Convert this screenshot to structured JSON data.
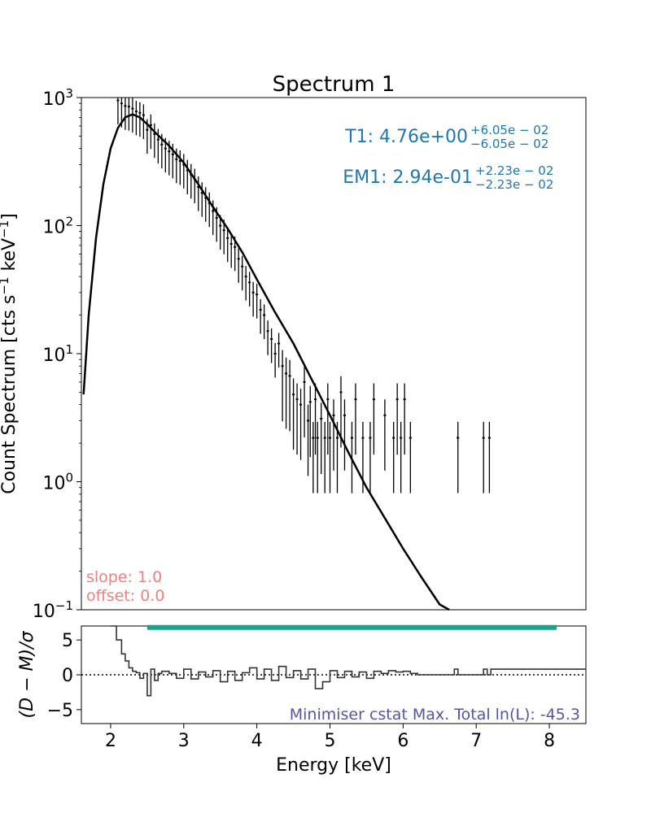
{
  "chart_data": [
    {
      "type": "scatter",
      "title": "Spectrum 1",
      "ylabel_main": "Count Spectrum [cts s",
      "ylabel_sup1": "−1",
      "ylabel_mid": " keV",
      "ylabel_sup2": "−1",
      "ylabel_end": "]",
      "yscale": "log",
      "xlim": [
        1.6,
        8.5
      ],
      "ylim": [
        0.1,
        1000
      ],
      "y_ticks": [
        {
          "base": "10",
          "exp": "−1",
          "v": 0.1
        },
        {
          "base": "10",
          "exp": "0",
          "v": 1
        },
        {
          "base": "10",
          "exp": "1",
          "v": 10
        },
        {
          "base": "10",
          "exp": "2",
          "v": 100
        },
        {
          "base": "10",
          "exp": "3",
          "v": 1000
        }
      ],
      "annotations": {
        "t1": {
          "label": "T1: 4.76e+00",
          "sup": "+6.05e − 02",
          "sub": "−6.05e − 02",
          "color": "#1f77b4"
        },
        "em1": {
          "label": "EM1: 2.94e-01",
          "sup": "+2.23e − 02",
          "sub": "−2.23e − 02",
          "color": "#1f77b4"
        },
        "slope": {
          "label": "slope: 1.0",
          "color": "#f08080"
        },
        "offset": {
          "label": "offset: 0.0",
          "color": "#f08080"
        }
      },
      "model_curve": {
        "color": "#000000",
        "x": [
          1.63,
          1.7,
          1.8,
          1.9,
          2.0,
          2.1,
          2.2,
          2.3,
          2.4,
          2.5,
          2.6,
          2.8,
          3.0,
          3.2,
          3.4,
          3.6,
          3.8,
          4.0,
          4.25,
          4.5,
          4.75,
          5.0,
          5.25,
          5.5,
          5.75,
          6.0,
          6.25,
          6.5,
          6.63
        ],
        "y": [
          4.8,
          20,
          80,
          210,
          400,
          580,
          700,
          740,
          700,
          620,
          540,
          420,
          310,
          210,
          140,
          95,
          62,
          38,
          21,
          12,
          6.3,
          3.3,
          1.7,
          0.9,
          0.52,
          0.3,
          0.18,
          0.11,
          0.1
        ]
      },
      "data_points": {
        "color": "#000000",
        "x": [
          2.1,
          2.15,
          2.2,
          2.25,
          2.3,
          2.35,
          2.4,
          2.45,
          2.5,
          2.55,
          2.6,
          2.65,
          2.7,
          2.75,
          2.8,
          2.85,
          2.9,
          2.95,
          3.0,
          3.05,
          3.1,
          3.15,
          3.2,
          3.25,
          3.3,
          3.35,
          3.4,
          3.45,
          3.5,
          3.55,
          3.6,
          3.65,
          3.7,
          3.75,
          3.8,
          3.85,
          3.9,
          3.95,
          4.0,
          4.05,
          4.1,
          4.15,
          4.2,
          4.25,
          4.3,
          4.35,
          4.4,
          4.45,
          4.5,
          4.55,
          4.6,
          4.65,
          4.7,
          4.73,
          4.77,
          4.8,
          4.83,
          4.88,
          4.93,
          4.97,
          5.0,
          5.05,
          5.1,
          5.15,
          5.2,
          5.3,
          5.35,
          5.45,
          5.55,
          5.6,
          5.75,
          5.87,
          5.92,
          5.97,
          6.02,
          6.1,
          6.75,
          7.1,
          7.18
        ],
        "y": [
          950,
          900,
          860,
          850,
          820,
          780,
          760,
          730,
          560,
          610,
          520,
          470,
          430,
          400,
          380,
          360,
          330,
          320,
          300,
          270,
          250,
          230,
          200,
          180,
          165,
          150,
          130,
          115,
          100,
          92,
          80,
          72,
          68,
          55,
          48,
          40,
          36,
          30,
          29,
          22,
          20,
          15,
          13,
          10,
          12,
          8,
          7,
          6.7,
          4.8,
          4.4,
          4.0,
          6.0,
          3.0,
          4.2,
          2.2,
          4.4,
          2.2,
          3.1,
          2.2,
          4.4,
          2.2,
          3.3,
          2.2,
          5.0,
          3.3,
          2.2,
          4.4,
          2.2,
          2.2,
          4.4,
          3.3,
          2.2,
          4.4,
          2.2,
          4.4,
          2.2,
          2.2,
          2.2,
          2.2
        ],
        "err_rel": 0.35
      }
    },
    {
      "type": "line",
      "ylabel": "(D − M)/σ",
      "xlabel": "Energy [keV]",
      "xlim": [
        1.6,
        8.5
      ],
      "ylim": [
        -7,
        7
      ],
      "x_ticks": [
        2,
        3,
        4,
        5,
        6,
        7,
        8
      ],
      "y_ticks": [
        -5,
        0,
        5
      ],
      "fit_range": {
        "x": [
          2.5,
          8.1
        ],
        "y": 6.8,
        "color": "#17a589"
      },
      "annotation": {
        "label": "Minimiser cstat Max. Total ln(L): -45.3",
        "color": "#5555aa"
      },
      "residual_step": {
        "color": "#333333",
        "x": [
          2.0,
          2.08,
          2.15,
          2.2,
          2.25,
          2.3,
          2.35,
          2.4,
          2.45,
          2.5,
          2.55,
          2.6,
          2.65,
          2.7,
          2.8,
          2.9,
          3.0,
          3.1,
          3.2,
          3.3,
          3.4,
          3.5,
          3.6,
          3.7,
          3.8,
          3.9,
          4.0,
          4.1,
          4.2,
          4.3,
          4.4,
          4.5,
          4.6,
          4.7,
          4.8,
          4.9,
          5.0,
          5.1,
          5.2,
          5.3,
          5.4,
          5.5,
          5.6,
          5.7,
          5.8,
          5.9,
          6.0,
          6.1,
          6.2,
          6.7,
          6.75,
          7.1,
          7.15,
          7.2,
          8.5
        ],
        "y": [
          7.5,
          5.0,
          3.0,
          2.0,
          1.0,
          0.5,
          0.3,
          -0.5,
          0.2,
          -3.0,
          0.8,
          -0.8,
          0.2,
          0.5,
          0.2,
          -0.5,
          0.8,
          -0.6,
          0.4,
          -0.3,
          0.6,
          -1.0,
          0.5,
          -0.8,
          0.3,
          1.0,
          -0.6,
          0.8,
          -0.8,
          1.2,
          -0.4,
          0.6,
          -0.6,
          0.8,
          -2.0,
          -1.0,
          0.6,
          -0.4,
          0.5,
          -0.3,
          0.4,
          -0.5,
          0.5,
          0.2,
          0.6,
          0.4,
          0.5,
          0.2,
          0.0,
          0.8,
          0.0,
          0.8,
          0.0,
          0.8,
          0.0
        ]
      }
    }
  ]
}
